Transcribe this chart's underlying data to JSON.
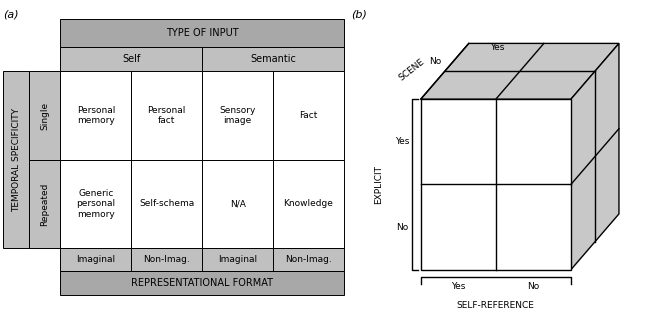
{
  "panel_a_label": "(a)",
  "panel_b_label": "(b)",
  "header_bg": "#a8a8a8",
  "subheader_bg": "#c0c0c0",
  "rowheader_bg": "#c0c0c0",
  "cell_bg": "#ffffff",
  "border_color": "#000000",
  "type_of_input": "TYPE OF INPUT",
  "self_label": "Self",
  "semantic_label": "Semantic",
  "temporal_specificity": "TEMPORAL SPECIFICITY",
  "single_label": "Single",
  "repeated_label": "Repeated",
  "representational_format": "REPRESENTATIONAL FORMAT",
  "cells": [
    [
      "Personal\nmemory",
      "Personal\nfact",
      "Sensory\nimage",
      "Fact"
    ],
    [
      "Generic\npersonal\nmemory",
      "Self-schema",
      "N/A",
      "Knowledge"
    ]
  ],
  "bottom_labels": [
    "Imaginal",
    "Non-Imag.",
    "Imaginal",
    "Non-Imag."
  ],
  "scene_label": "SCENE",
  "explicit_label": "EXPLICIT",
  "self_ref_label": "SELF-REFERENCE",
  "yes_label": "Yes",
  "no_label": "No",
  "cube_face_color": "#c8c8c8",
  "cube_line_color": "#000000"
}
